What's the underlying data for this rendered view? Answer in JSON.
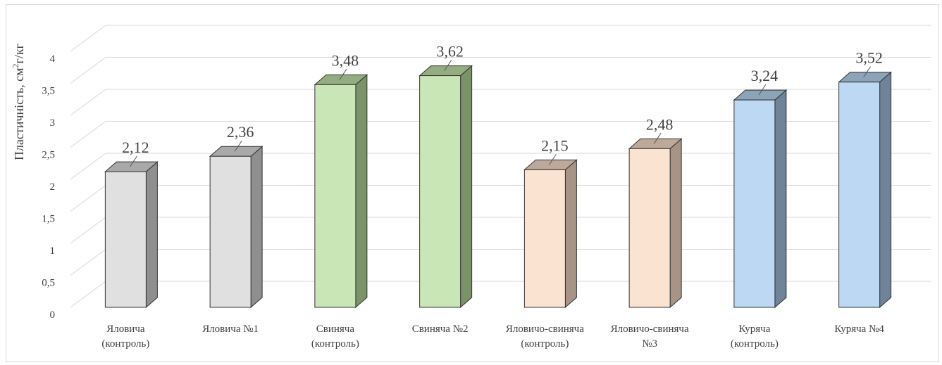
{
  "chart_data": {
    "type": "bar",
    "ylabel": "Пластичність, см²/г/кг",
    "ylabel_main": "Пластичність, см",
    "ylabel_sup": "2",
    "ylabel_tail": "г/кг",
    "ylim": [
      0,
      4
    ],
    "yticks": [
      "0",
      "0,5",
      "1",
      "1,5",
      "2",
      "2,5",
      "3",
      "3,5",
      "4"
    ],
    "categories": [
      [
        "Яловича",
        "(контроль)"
      ],
      [
        "Яловича №1"
      ],
      [
        "Свиняча",
        "(контроль)"
      ],
      [
        "Свиняча №2"
      ],
      [
        "Яловичо-свиняча",
        "(контроль)"
      ],
      [
        "Яловичо-свиняча",
        "№3"
      ],
      [
        "Куряча",
        "(контроль)"
      ],
      [
        "Куряча №4"
      ]
    ],
    "values": [
      2.12,
      2.36,
      3.48,
      3.62,
      2.15,
      2.48,
      3.24,
      3.52
    ],
    "value_labels": [
      "2,12",
      "2,36",
      "3,48",
      "3,62",
      "2,15",
      "2,48",
      "3,24",
      "3,52"
    ],
    "bar_colors": [
      {
        "front": "#e0e0e0",
        "side": "#8f8f8f",
        "top": "#a9a9a9"
      },
      {
        "front": "#e0e0e0",
        "side": "#8f8f8f",
        "top": "#a9a9a9"
      },
      {
        "front": "#c9e6b6",
        "side": "#7a9368",
        "top": "#93ad80"
      },
      {
        "front": "#c9e6b6",
        "side": "#7a9368",
        "top": "#93ad80"
      },
      {
        "front": "#fbe3d2",
        "side": "#a89486",
        "top": "#bda99a"
      },
      {
        "front": "#fbe3d2",
        "side": "#a89486",
        "top": "#bda99a"
      },
      {
        "front": "#bcd8f2",
        "side": "#6f8499",
        "top": "#8da3b8"
      },
      {
        "front": "#bcd8f2",
        "side": "#6f8499",
        "top": "#8da3b8"
      }
    ],
    "grid": true,
    "legend": "none"
  }
}
